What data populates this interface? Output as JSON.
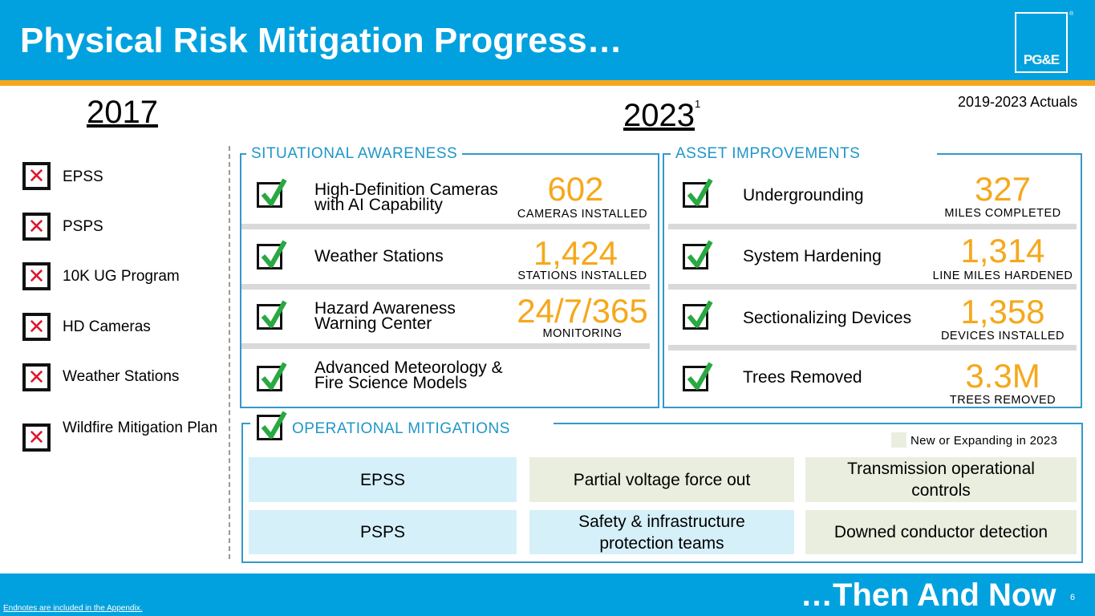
{
  "header": {
    "title": "Physical Risk Mitigation Progress…",
    "logo_text": "PG&E",
    "logo_mark": "®"
  },
  "actuals_note": "2019-2023 Actuals",
  "years": {
    "left": "2017",
    "right": "2023",
    "right_sup": "1"
  },
  "left_items": [
    {
      "label": "EPSS",
      "icon": "red-x-icon"
    },
    {
      "label": "PSPS",
      "icon": "red-x-icon"
    },
    {
      "label": "10K UG Program",
      "icon": "red-x-icon"
    },
    {
      "label": "HD Cameras",
      "icon": "red-x-icon"
    },
    {
      "label": "Weather Stations",
      "icon": "red-x-icon"
    },
    {
      "label": "Wildfire Mitigation Plan",
      "icon": "red-x-icon"
    }
  ],
  "situational": {
    "title": "SITUATIONAL AWARENESS",
    "items": [
      {
        "label": "High-Definition Cameras with AI Capability",
        "value": "602",
        "sub": "CAMERAS INSTALLED"
      },
      {
        "label": "Weather Stations",
        "value": "1,424",
        "sub": "STATIONS INSTALLED"
      },
      {
        "label": "Hazard Awareness Warning Center",
        "value": "24/7/365",
        "sub": "MONITORING"
      },
      {
        "label": "Advanced Meteorology & Fire Science Models",
        "value": "",
        "sub": ""
      }
    ]
  },
  "asset": {
    "title": "ASSET IMPROVEMENTS",
    "items": [
      {
        "label": "Undergrounding",
        "value": "327",
        "sub": "MILES COMPLETED"
      },
      {
        "label": "System Hardening",
        "value": "1,314",
        "sub": "LINE MILES HARDENED"
      },
      {
        "label": "Sectionalizing Devices",
        "value": "1,358",
        "sub": "DEVICES INSTALLED"
      },
      {
        "label": "Trees Removed",
        "value": "3.3M",
        "sub": "TREES REMOVED"
      }
    ]
  },
  "operational": {
    "title": "OPERATIONAL MITIGATIONS",
    "legend": "New or Expanding in 2023",
    "boxes": [
      {
        "label": "EPSS",
        "new": false
      },
      {
        "label": "Partial voltage force out",
        "new": true
      },
      {
        "label": "Transmission operational controls",
        "new": true
      },
      {
        "label": "PSPS",
        "new": false
      },
      {
        "label": "Safety & infrastructure protection teams",
        "new": false
      },
      {
        "label": "Downed conductor detection",
        "new": true
      }
    ]
  },
  "footer": {
    "tagline": "…Then And Now",
    "page": "6",
    "endnote": "Endnotes are included in the Appendix."
  },
  "colors": {
    "brand_blue": "#00a1de",
    "accent_orange": "#f5a81c",
    "panel_blue": "#2096c8",
    "check_green": "#2aa842",
    "x_red": "#e0142b"
  }
}
